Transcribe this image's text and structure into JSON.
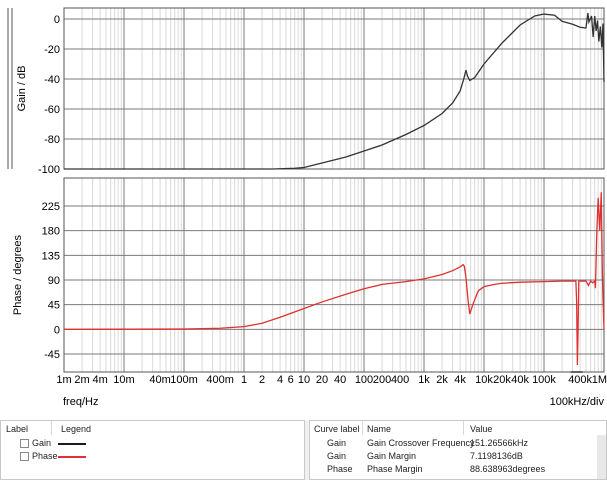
{
  "chart_data": [
    {
      "type": "line",
      "ylabel": "Gain / dB",
      "xscale": "log",
      "xlim": [
        0.001,
        1000000
      ],
      "ylim": [
        -100,
        5
      ],
      "yticks": [
        0,
        -20,
        -40,
        -60,
        -80,
        -100
      ],
      "ytick_labels": [
        "0",
        "-20",
        "-40",
        "-60",
        "-80",
        "-100"
      ],
      "grid": true,
      "series": [
        {
          "name": "Gain",
          "color": "#333333",
          "x": [
            0.001,
            0.1,
            1,
            3,
            7,
            10,
            20,
            50,
            100,
            200,
            500,
            1000,
            2000,
            3000,
            4000,
            4600,
            5000,
            5300,
            5800,
            7000,
            10000,
            20000,
            40000,
            70000,
            100000,
            150000,
            200000,
            300000,
            400000,
            500000,
            540000,
            560000,
            620000,
            660000,
            700000,
            740000,
            780000,
            820000,
            870000,
            920000,
            960000,
            1000000
          ],
          "y": [
            -100,
            -100,
            -100,
            -100,
            -99.5,
            -99,
            -96,
            -92,
            -88,
            -84,
            -77,
            -71,
            -63,
            -56,
            -48,
            -40,
            -34,
            -38,
            -41,
            -39,
            -30,
            -16,
            -4,
            2,
            3.3,
            2.5,
            -1.5,
            -3.5,
            -5.5,
            -6,
            4,
            -2,
            2,
            -12,
            2,
            -8,
            -1,
            -15,
            -5,
            -19,
            -3,
            -42
          ]
        }
      ]
    },
    {
      "type": "line",
      "ylabel": "Phase / degrees",
      "xlabel": "freq/Hz",
      "xscale": "log",
      "xlim": [
        0.001,
        1000000
      ],
      "ylim": [
        -75,
        260
      ],
      "yticks": [
        225,
        180,
        135,
        90,
        45,
        0,
        -45
      ],
      "ytick_labels": [
        "225",
        "180",
        "135",
        "90",
        "45",
        "0",
        "-45"
      ],
      "xtick_labels": [
        "1m",
        "2m",
        "4m",
        "10m",
        "40m",
        "100m",
        "400m",
        "1",
        "2",
        "4",
        "6",
        "10",
        "20",
        "40",
        "100",
        "200",
        "400",
        "1k",
        "2k",
        "4k",
        "10k",
        "20k",
        "40k",
        "100k",
        "400k",
        "1M"
      ],
      "xtick_values": [
        0.001,
        0.002,
        0.004,
        0.01,
        0.04,
        0.1,
        0.4,
        1,
        2,
        4,
        6,
        10,
        20,
        40,
        100,
        200,
        400,
        1000,
        2000,
        4000,
        10000,
        20000,
        40000,
        100000,
        400000,
        1000000
      ],
      "grid": true,
      "series": [
        {
          "name": "Phase",
          "color": "#e03030",
          "x": [
            0.001,
            0.1,
            0.4,
            1,
            2,
            4,
            10,
            20,
            50,
            100,
            200,
            500,
            1000,
            2000,
            3000,
            4000,
            4500,
            4700,
            5000,
            5400,
            5800,
            6500,
            8000,
            10000,
            15000,
            20000,
            40000,
            100000,
            200000,
            300000,
            340000,
            350000,
            360000,
            370000,
            380000,
            390000,
            420000,
            470000,
            500000,
            550000,
            600000,
            650000,
            700000,
            720000,
            760000,
            800000,
            850000,
            900000,
            940000,
            960000,
            1000000
          ],
          "y": [
            0,
            0.5,
            2,
            5,
            11,
            22,
            38,
            50,
            64,
            74,
            82,
            87,
            92,
            100,
            107,
            114,
            118,
            115,
            95,
            55,
            28,
            45,
            70,
            78,
            82,
            84,
            86,
            87,
            88,
            88,
            88,
            50,
            -65,
            0,
            88,
            88,
            88,
            88,
            88,
            80,
            88,
            85,
            88,
            75,
            180,
            240,
            180,
            250,
            100,
            60,
            0
          ]
        }
      ]
    }
  ],
  "axis_units_label": "100kHz/div",
  "legend_panel": {
    "headers": [
      "Label",
      "Legend"
    ],
    "rows": [
      {
        "label": "Gain",
        "color": "#1a1a1a",
        "checked": false
      },
      {
        "label": "Phase",
        "color": "#e03030",
        "checked": false
      }
    ]
  },
  "info_panel": {
    "headers": [
      "Curve label",
      "Name",
      "Value"
    ],
    "rows": [
      {
        "curve": "Gain",
        "name": "Gain Crossover Frequency",
        "value": "151.26566kHz"
      },
      {
        "curve": "Gain",
        "name": "Gain Margin",
        "value": "7.1198136dB"
      },
      {
        "curve": "Phase",
        "name": "Phase Margin",
        "value": "88.638963degrees"
      }
    ]
  }
}
